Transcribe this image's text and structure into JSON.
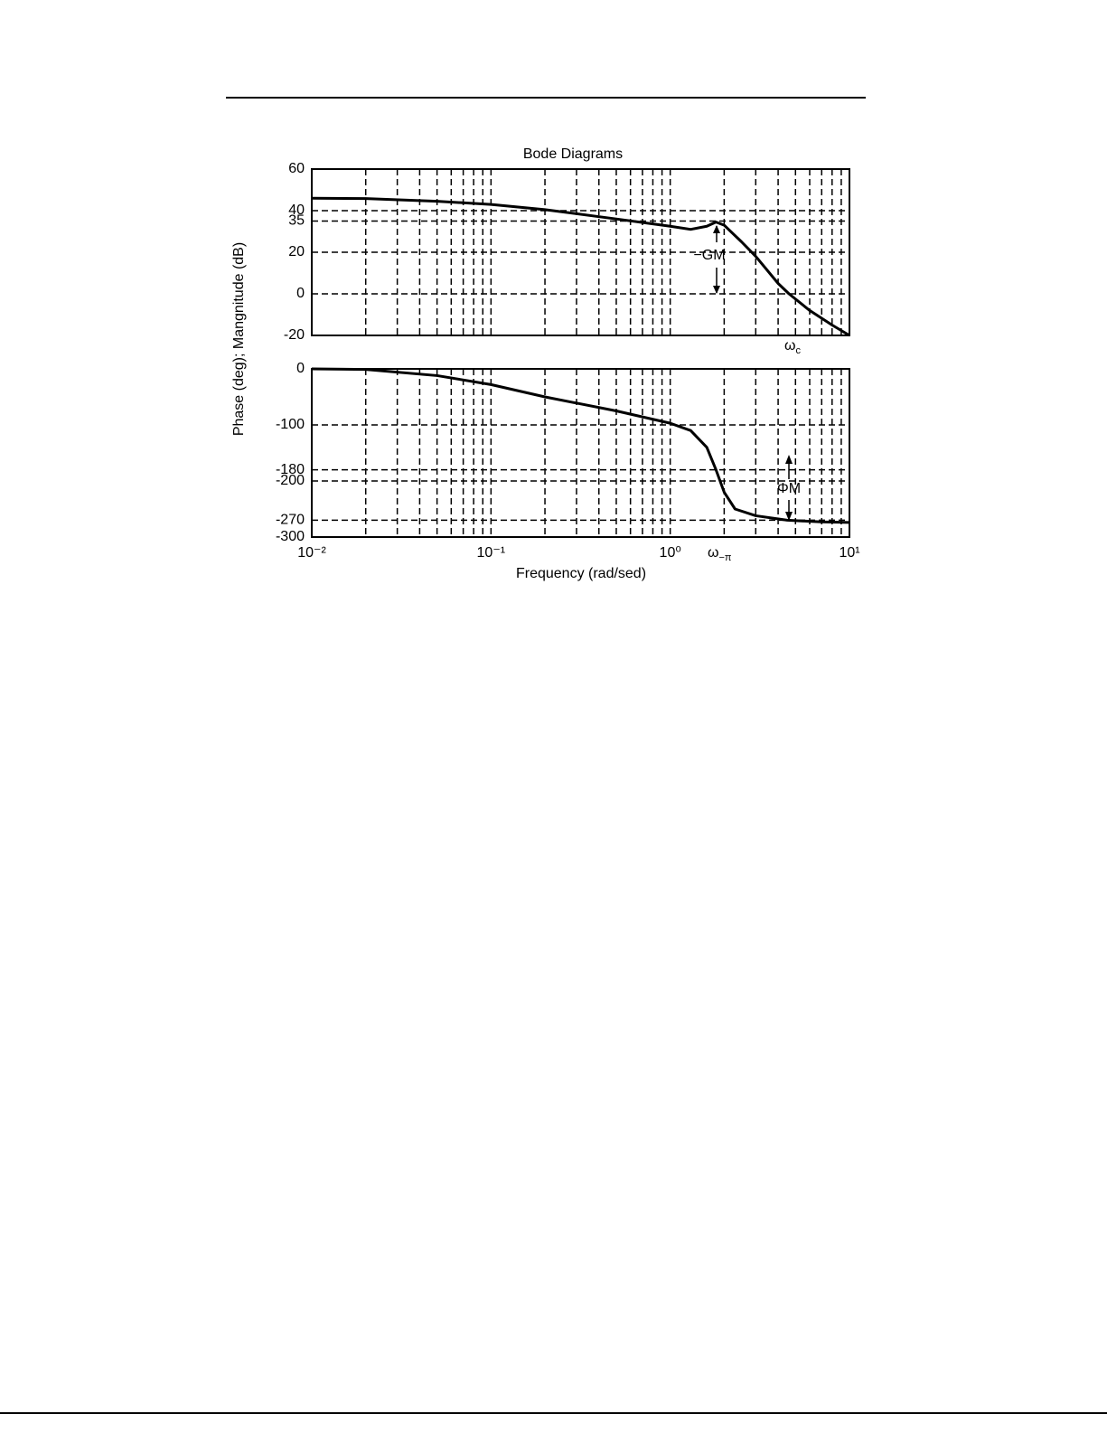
{
  "chart_data": {
    "type": "line",
    "title": "Bode Diagrams",
    "xlabel": "Frequency (rad/sed)",
    "ylabel": "Phase (deg); Mangnitude (dB)",
    "xscale": "log",
    "xlim": [
      0.01,
      10
    ],
    "xticks": [
      {
        "value": 0.01,
        "label": "10⁻²"
      },
      {
        "value": 0.1,
        "label": "10⁻¹"
      },
      {
        "value": 1,
        "label": "10⁰"
      },
      {
        "value": 10,
        "label": "10¹"
      }
    ],
    "xgrid": [
      0.02,
      0.03,
      0.04,
      0.05,
      0.06,
      0.07,
      0.08,
      0.09,
      0.1,
      0.2,
      0.3,
      0.4,
      0.5,
      0.6,
      0.7,
      0.8,
      0.9,
      1,
      2,
      3,
      4,
      5,
      6,
      7,
      8,
      9
    ],
    "grid": true,
    "panels": [
      {
        "ylim": [
          -20,
          60
        ],
        "yticks": [
          -20,
          0,
          20,
          35,
          40,
          60
        ],
        "series": [
          {
            "color": "#000000",
            "x": [
              0.01,
              0.02,
              0.05,
              0.1,
              0.2,
              0.5,
              1,
              1.3,
              1.6,
              1.8,
              2,
              2.5,
              3,
              4,
              4.6,
              6,
              8,
              10
            ],
            "values": [
              46,
              45.8,
              44.5,
              43,
              40.5,
              36,
              32.5,
              31,
              32.5,
              34.5,
              33,
              25,
              18,
              5,
              0,
              -8,
              -15,
              -20
            ]
          }
        ]
      },
      {
        "ylim": [
          -300,
          0
        ],
        "yticks": [
          -300,
          -270,
          -200,
          -180,
          -100,
          0
        ],
        "series": [
          {
            "color": "#000000",
            "x": [
              0.01,
              0.02,
              0.05,
              0.1,
              0.2,
              0.5,
              1,
              1.3,
              1.6,
              1.8,
              2,
              2.3,
              3,
              4.5,
              7,
              10
            ],
            "values": [
              0,
              -1,
              -12,
              -28,
              -50,
              -75,
              -97,
              -110,
              -140,
              -180,
              -220,
              -250,
              -262,
              -270,
              -273,
              -274
            ]
          }
        ]
      }
    ],
    "annotations": {
      "gm": "−GM",
      "pm": "ΦM",
      "wc": {
        "symbol": "ω",
        "sub": "c"
      },
      "wpi": {
        "symbol": "ω",
        "sub": "−π"
      }
    }
  }
}
